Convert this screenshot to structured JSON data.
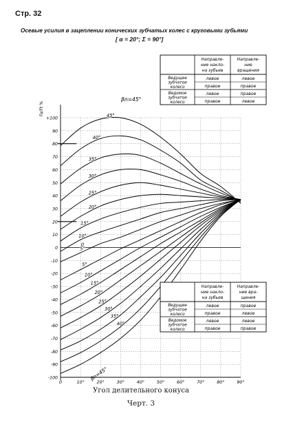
{
  "page": {
    "number_label": "Стр. 32"
  },
  "header": {
    "title": "Осевые усилия в зацеплении конических зубчатых колес с круговыми зубьями",
    "subtitle": "[ α = 20°; Σ = 90°]"
  },
  "captions": {
    "xlabel": "Угол делительного конуса",
    "figure": "Черт. 3"
  },
  "top_table": {
    "col_headers": [
      "Направле-ние накло-на зубьев",
      "Направле-ние вращения"
    ],
    "rows": [
      {
        "label": "Ведущее зубчатое колесо",
        "values": [
          [
            "левое",
            "левое"
          ],
          [
            "правое",
            "правое"
          ]
        ]
      },
      {
        "label": "Ведомое зубчатое колесо",
        "values": [
          [
            "левое",
            "правое"
          ],
          [
            "правое",
            "левое"
          ]
        ]
      }
    ]
  },
  "bottom_table": {
    "col_headers": [
      "Направле-ние накло-на зубьев",
      "Направле-ние вра-щения"
    ],
    "rows": [
      {
        "label": "Ведущее зубчатое колесо",
        "values": [
          [
            "левое",
            "правое"
          ],
          [
            "правое",
            "левое"
          ]
        ]
      },
      {
        "label": "Ведомое зубчатое колесо",
        "values": [
          [
            "левое",
            "левое"
          ],
          [
            "правое",
            "правое"
          ]
        ]
      }
    ]
  },
  "chart_data": {
    "type": "line",
    "ylabel": "Fa/Ft %",
    "x_ticks": [
      "0",
      "10°",
      "20°",
      "30°",
      "40°",
      "50°",
      "60°",
      "70°",
      "80°",
      "90°"
    ],
    "y_ticks": [
      "+100",
      "90",
      "80",
      "70",
      "60",
      "50",
      "40",
      "30",
      "20",
      "10",
      "0",
      "-10",
      "-20",
      "-30",
      "-40",
      "-50",
      "-60",
      "-70",
      "-80",
      "-90",
      "-100"
    ],
    "xlim": [
      0,
      90
    ],
    "ylim": [
      -100,
      100
    ],
    "top_label": "βn=45°",
    "bottom_label": "βn=45°",
    "series": [
      {
        "name": "45°",
        "x": [
          0,
          10,
          20,
          30,
          40,
          50,
          60,
          70,
          80,
          90
        ],
        "y": [
          78.5,
          92.0,
          99.0,
          100.0,
          95.0,
          85.0,
          72.0,
          57.0,
          47.0,
          34.0
        ]
      },
      {
        "name": "40°",
        "x": [
          0,
          10,
          20,
          30,
          40,
          50,
          60,
          70,
          80,
          90
        ],
        "y": [
          63.0,
          76.0,
          84.0,
          86.0,
          83.0,
          75.0,
          65.0,
          52.0,
          44.0,
          35.0
        ]
      },
      {
        "name": "35°",
        "x": [
          0,
          10,
          20,
          30,
          40,
          50,
          60,
          70,
          80,
          90
        ],
        "y": [
          49.0,
          61.0,
          69.0,
          72.0,
          71.0,
          65.0,
          57.0,
          49.0,
          42.0,
          36.0
        ]
      },
      {
        "name": "30°",
        "x": [
          0,
          10,
          20,
          30,
          40,
          50,
          60,
          70,
          80,
          90
        ],
        "y": [
          36.0,
          48.0,
          56.0,
          60.0,
          60.0,
          56.0,
          51.0,
          45.0,
          40.0,
          37.0
        ]
      },
      {
        "name": "25°",
        "x": [
          0,
          10,
          20,
          30,
          40,
          50,
          60,
          70,
          80,
          90
        ],
        "y": [
          24.0,
          35.0,
          43.0,
          48.0,
          50.0,
          48.0,
          45.0,
          42.0,
          39.0,
          37.0
        ]
      },
      {
        "name": "20°",
        "x": [
          0,
          10,
          20,
          30,
          40,
          50,
          60,
          70,
          80,
          90
        ],
        "y": [
          14.0,
          24.0,
          32.0,
          37.0,
          40.0,
          41.0,
          40.0,
          39.0,
          38.0,
          37.0
        ]
      },
      {
        "name": "15°",
        "x": [
          0,
          10,
          20,
          30,
          40,
          50,
          60,
          70,
          80,
          90
        ],
        "y": [
          5.0,
          15.0,
          22.0,
          27.0,
          31.0,
          34.0,
          35.0,
          36.0,
          37.0,
          37.0
        ]
      },
      {
        "name": "10°",
        "x": [
          0,
          10,
          20,
          30,
          40,
          50,
          60,
          70,
          80,
          90
        ],
        "y": [
          -3.0,
          6.0,
          12.0,
          17.0,
          22.0,
          27.0,
          30.0,
          33.0,
          36.0,
          37.0
        ]
      },
      {
        "name": "5°",
        "x": [
          0,
          10,
          20,
          30,
          40,
          50,
          60,
          70,
          80,
          90
        ],
        "y": [
          -11.0,
          -4.0,
          3.0,
          8.0,
          14.0,
          20.0,
          25.0,
          30.0,
          34.0,
          37.0
        ]
      },
      {
        "name": "0°",
        "x": [
          0,
          10,
          20,
          30,
          40,
          50,
          60,
          70,
          80,
          90
        ],
        "y": [
          0.0,
          0.0,
          0.0,
          0.0,
          0.0,
          0.0,
          0.0,
          0.0,
          0.0,
          0.0
        ]
      },
      {
        "name": "-5°",
        "x": [
          0,
          10,
          20,
          30,
          40,
          50,
          60,
          70,
          80,
          90
        ],
        "y": [
          -25.0,
          -17.0,
          -9.0,
          -1.0,
          6.0,
          13.0,
          20.0,
          27.0,
          33.0,
          37.0
        ]
      },
      {
        "name": "-10°",
        "x": [
          0,
          10,
          20,
          30,
          40,
          50,
          60,
          70,
          80,
          90
        ],
        "y": [
          -35.0,
          -27.0,
          -18.0,
          -9.0,
          0.0,
          8.0,
          16.0,
          24.0,
          31.0,
          37.0
        ]
      },
      {
        "name": "-15°",
        "x": [
          0,
          10,
          20,
          30,
          40,
          50,
          60,
          70,
          80,
          90
        ],
        "y": [
          -44.0,
          -36.0,
          -27.0,
          -17.0,
          -7.0,
          3.0,
          12.0,
          21.0,
          30.0,
          37.0
        ]
      },
      {
        "name": "-20°",
        "x": [
          0,
          10,
          20,
          30,
          40,
          50,
          60,
          70,
          80,
          90
        ],
        "y": [
          -53.0,
          -45.0,
          -36.0,
          -25.0,
          -14.0,
          -3.0,
          8.0,
          19.0,
          29.0,
          37.0
        ]
      },
      {
        "name": "-25°",
        "x": [
          0,
          10,
          20,
          30,
          40,
          50,
          60,
          70,
          80,
          90
        ],
        "y": [
          -62.0,
          -54.0,
          -45.0,
          -34.0,
          -22.0,
          -9.0,
          4.0,
          17.0,
          28.0,
          37.0
        ]
      },
      {
        "name": "-30°",
        "x": [
          0,
          10,
          20,
          30,
          40,
          50,
          60,
          70,
          80,
          90
        ],
        "y": [
          -71.0,
          -63.0,
          -54.0,
          -43.0,
          -30.0,
          -16.0,
          -1.0,
          14.0,
          27.0,
          37.0
        ]
      },
      {
        "name": "-35°",
        "x": [
          0,
          10,
          20,
          30,
          40,
          50,
          60,
          70,
          80,
          90
        ],
        "y": [
          -79.0,
          -72.0,
          -63.0,
          -52.0,
          -38.0,
          -23.0,
          -6.0,
          11.0,
          26.0,
          37.0
        ]
      },
      {
        "name": "-40°",
        "x": [
          0,
          10,
          20,
          30,
          40,
          50,
          60,
          70,
          80,
          90
        ],
        "y": [
          -88.0,
          -81.0,
          -72.0,
          -61.0,
          -47.0,
          -30.0,
          -11.0,
          8.0,
          25.0,
          37.0
        ]
      },
      {
        "name": "-45°",
        "x": [
          0,
          10,
          20,
          30,
          40,
          50,
          60,
          70,
          80,
          90
        ],
        "y": [
          -97.0,
          -90.0,
          -81.0,
          -70.0,
          -56.0,
          -38.0,
          -17.0,
          5.0,
          24.0,
          37.0
        ]
      }
    ],
    "curve_labels": [
      "45°",
      "40°",
      "35°",
      "30°",
      "25°",
      "20°",
      "15°",
      "10°",
      "5°",
      "0",
      "5°",
      "10°",
      "15°",
      "20°",
      "25°",
      "30°",
      "35°",
      "40°"
    ]
  }
}
